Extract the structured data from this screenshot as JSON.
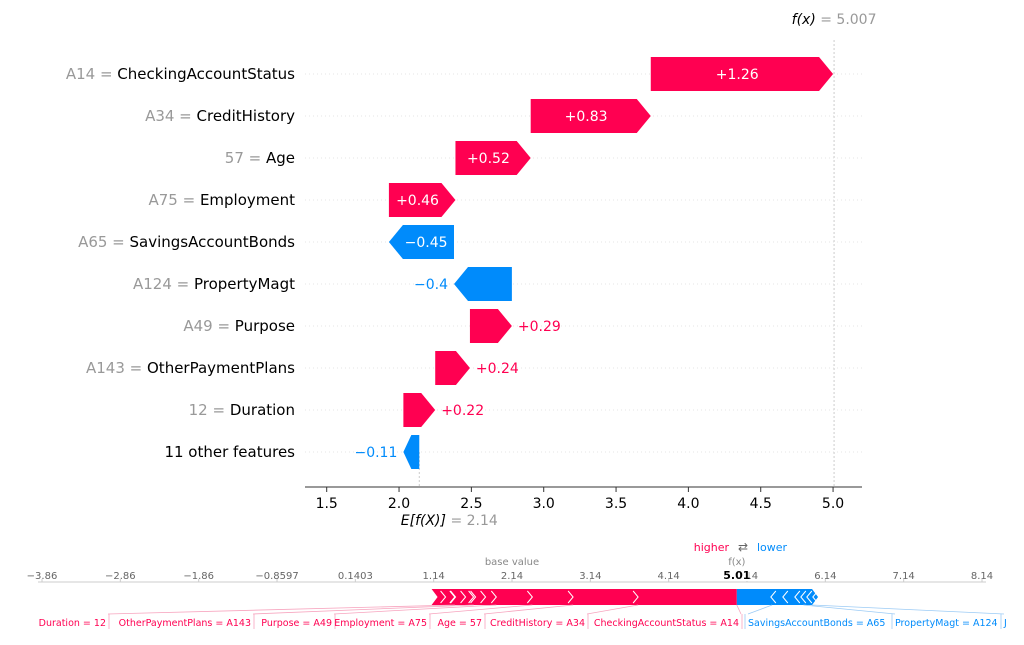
{
  "colors": {
    "positive": "#ff0051",
    "negative": "#008bfb",
    "muted": "#999999",
    "label": "#000000"
  },
  "chart_data": [
    {
      "type": "waterfall",
      "base_value": 2.14,
      "base_label_prefix": "E[f(X)]",
      "base_label_value": "= 2.14",
      "fx_value": 5.007,
      "fx_label_prefix": "f(x)",
      "fx_label_value": "= 5.007",
      "xlim": [
        1.35,
        5.2
      ],
      "xticks": [
        "1.5",
        "2.0",
        "2.5",
        "3.0",
        "3.5",
        "4.0",
        "4.5",
        "5.0"
      ],
      "xtick_values": [
        1.5,
        2.0,
        2.5,
        3.0,
        3.5,
        4.0,
        4.5,
        5.0
      ],
      "features": [
        {
          "value_text": "A14",
          "name": "CheckingAccountStatus",
          "contribution": 1.26,
          "label": "+1.26"
        },
        {
          "value_text": "A34",
          "name": "CreditHistory",
          "contribution": 0.83,
          "label": "+0.83"
        },
        {
          "value_text": "57",
          "name": "Age",
          "contribution": 0.52,
          "label": "+0.52"
        },
        {
          "value_text": "A75",
          "name": "Employment",
          "contribution": 0.46,
          "label": "+0.46"
        },
        {
          "value_text": "A65",
          "name": "SavingsAccountBonds",
          "contribution": -0.45,
          "label": "−0.45"
        },
        {
          "value_text": "A124",
          "name": "PropertyMagt",
          "contribution": -0.4,
          "label": "−0.4"
        },
        {
          "value_text": "A49",
          "name": "Purpose",
          "contribution": 0.29,
          "label": "+0.29"
        },
        {
          "value_text": "A143",
          "name": "OtherPaymentPlans",
          "contribution": 0.24,
          "label": "+0.24"
        },
        {
          "value_text": "12",
          "name": "Duration",
          "contribution": 0.22,
          "label": "+0.22"
        },
        {
          "value_text": "",
          "name": "11 other features",
          "contribution": -0.11,
          "label": "−0.11"
        }
      ]
    },
    {
      "type": "force",
      "legend_higher": "higher",
      "legend_arrows": "⇄",
      "legend_lower": "lower",
      "base_value_label": "base value",
      "fx_label": "f(x)",
      "fx_text": "5.01",
      "base_value": 2.14,
      "output_value": 5.01,
      "xlim": [
        -3.86,
        8.14
      ],
      "ticks": [
        "−3.86",
        "−2.86",
        "−1.86",
        "−0.8597",
        "0.1403",
        "1.14",
        "2.14",
        "3.14",
        "4.14",
        "5.14",
        "6.14",
        "7.14",
        "8.14"
      ],
      "tick_values": [
        -3.86,
        -2.86,
        -1.86,
        -0.8597,
        0.1403,
        1.14,
        2.14,
        3.14,
        4.14,
        5.14,
        6.14,
        7.14,
        8.14
      ],
      "positive_features": [
        {
          "label": "Duration = 12",
          "contribution": 0.22
        },
        {
          "label": "OtherPaymentPlans = A143",
          "contribution": 0.24
        },
        {
          "label": "Purpose = A49",
          "contribution": 0.29
        },
        {
          "label": "Employment = A75",
          "contribution": 0.46
        },
        {
          "label": "Age = 57",
          "contribution": 0.52
        },
        {
          "label": "CreditHistory = A34",
          "contribution": 0.83
        },
        {
          "label": "CheckingAccountStatus = A14",
          "contribution": 1.26
        }
      ],
      "negative_features": [
        {
          "label": "SavingsAccountBonds = A65",
          "contribution": -0.45
        },
        {
          "label": "PropertyMagt = A124",
          "contribution": -0.4
        },
        {
          "label": "J",
          "contribution": -0.11
        }
      ]
    }
  ]
}
